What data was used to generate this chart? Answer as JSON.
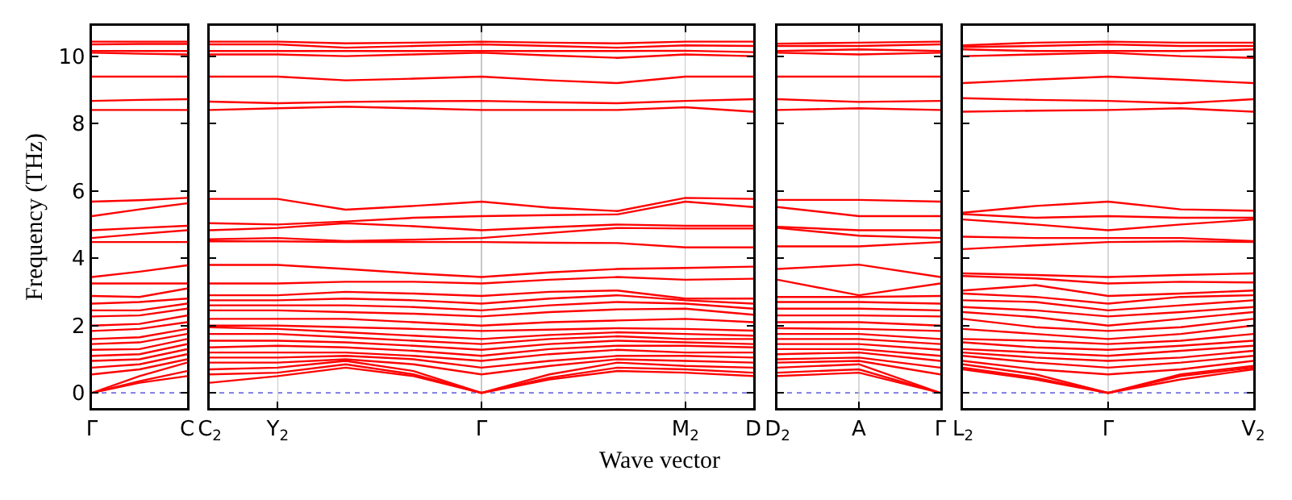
{
  "chart_data": [
    {
      "type": "line",
      "ylabel": "Frequency (THz)",
      "categories": [
        "Γ",
        null,
        "C"
      ],
      "ylim": [
        -0.45,
        10.9
      ],
      "yticks": [
        0,
        2,
        4,
        6,
        8,
        10
      ],
      "ref_lines": [
        {
          "axis": "y",
          "value": 0,
          "color": "#7070e0",
          "line_style": "dotted"
        }
      ],
      "series": [
        {
          "color": "#ff0000",
          "values": [
            0,
            0.3,
            0.5
          ]
        },
        {
          "color": "#ff0000",
          "values": [
            0,
            0.35,
            0.65
          ]
        },
        {
          "color": "#ff0000",
          "values": [
            0,
            0.5,
            0.9
          ]
        },
        {
          "color": "#ff0000",
          "values": [
            0.55,
            0.7,
            1.0
          ]
        },
        {
          "color": "#ff0000",
          "values": [
            0.75,
            0.85,
            1.15
          ]
        },
        {
          "color": "#ff0000",
          "values": [
            0.95,
            1.0,
            1.3
          ]
        },
        {
          "color": "#ff0000",
          "values": [
            1.1,
            1.15,
            1.45
          ]
        },
        {
          "color": "#ff0000",
          "values": [
            1.28,
            1.3,
            1.6
          ]
        },
        {
          "color": "#ff0000",
          "values": [
            1.45,
            1.5,
            1.75
          ]
        },
        {
          "color": "#ff0000",
          "values": [
            1.6,
            1.65,
            1.9
          ]
        },
        {
          "color": "#ff0000",
          "values": [
            1.84,
            1.9,
            2.1
          ]
        },
        {
          "color": "#ff0000",
          "values": [
            2.0,
            2.05,
            2.3
          ]
        },
        {
          "color": "#ff0000",
          "values": [
            2.27,
            2.3,
            2.5
          ]
        },
        {
          "color": "#ff0000",
          "values": [
            2.45,
            2.45,
            2.65
          ]
        },
        {
          "color": "#ff0000",
          "values": [
            2.65,
            2.7,
            2.8
          ]
        },
        {
          "color": "#ff0000",
          "values": [
            2.88,
            2.85,
            3.1
          ]
        },
        {
          "color": "#ff0000",
          "values": [
            3.25,
            3.25,
            3.25
          ]
        },
        {
          "color": "#ff0000",
          "values": [
            3.44,
            3.6,
            3.79
          ]
        },
        {
          "color": "#ff0000",
          "values": [
            4.48,
            4.48,
            4.48
          ]
        },
        {
          "color": "#ff0000",
          "values": [
            4.6,
            4.72,
            4.83
          ]
        },
        {
          "color": "#ff0000",
          "values": [
            4.83,
            4.9,
            4.96
          ]
        },
        {
          "color": "#ff0000",
          "values": [
            5.25,
            5.45,
            5.63
          ]
        },
        {
          "color": "#ff0000",
          "values": [
            5.68,
            5.72,
            5.79
          ]
        },
        {
          "color": "#ff0000",
          "values": [
            8.4,
            8.4,
            8.4
          ]
        },
        {
          "color": "#ff0000",
          "values": [
            8.67,
            8.7,
            8.72
          ]
        },
        {
          "color": "#ff0000",
          "values": [
            9.39,
            9.39,
            9.39
          ]
        },
        {
          "color": "#ff0000",
          "values": [
            10.1,
            10.07,
            10.05
          ]
        },
        {
          "color": "#ff0000",
          "values": [
            10.15,
            10.15,
            10.15
          ]
        },
        {
          "color": "#ff0000",
          "values": [
            10.35,
            10.36,
            10.36
          ]
        },
        {
          "color": "#ff0000",
          "values": [
            10.43,
            10.43,
            10.43
          ]
        }
      ]
    },
    {
      "type": "line",
      "xlabel": "Wave vector",
      "categories": [
        "C$_{2}$",
        "Y$_{2}$",
        null,
        null,
        "Γ",
        null,
        null,
        "M$_{2}$",
        "D"
      ],
      "ylim": [
        -0.45,
        10.9
      ],
      "yticks": [
        0,
        2,
        4,
        6,
        8,
        10
      ],
      "tick_labels": "x",
      "grid": "x",
      "ref_lines": [
        {
          "axis": "y",
          "value": 0,
          "color": "#7070e0",
          "line_style": "dotted"
        }
      ],
      "series": [
        {
          "color": "#ff0000",
          "values": [
            0.3,
            0.5,
            0.75,
            0.5,
            0,
            0.4,
            0.65,
            0.6,
            0.5
          ]
        },
        {
          "color": "#ff0000",
          "values": [
            0.55,
            0.6,
            0.85,
            0.55,
            0,
            0.45,
            0.75,
            0.7,
            0.6
          ]
        },
        {
          "color": "#ff0000",
          "values": [
            0.7,
            0.75,
            0.95,
            0.65,
            0,
            0.55,
            0.9,
            0.8,
            0.75
          ]
        },
        {
          "color": "#ff0000",
          "values": [
            0.9,
            0.9,
            1.0,
            0.85,
            0.55,
            0.8,
            1.0,
            0.95,
            0.9
          ]
        },
        {
          "color": "#ff0000",
          "values": [
            1.05,
            1.05,
            1.1,
            1.0,
            0.75,
            0.95,
            1.1,
            1.1,
            1.05
          ]
        },
        {
          "color": "#ff0000",
          "values": [
            1.2,
            1.2,
            1.2,
            1.1,
            0.95,
            1.15,
            1.28,
            1.2,
            1.2
          ]
        },
        {
          "color": "#ff0000",
          "values": [
            1.35,
            1.4,
            1.35,
            1.25,
            1.1,
            1.3,
            1.4,
            1.4,
            1.35
          ]
        },
        {
          "color": "#ff0000",
          "values": [
            1.55,
            1.55,
            1.5,
            1.4,
            1.28,
            1.45,
            1.55,
            1.5,
            1.45
          ]
        },
        {
          "color": "#ff0000",
          "values": [
            1.75,
            1.75,
            1.65,
            1.55,
            1.45,
            1.6,
            1.68,
            1.6,
            1.6
          ]
        },
        {
          "color": "#ff0000",
          "values": [
            1.95,
            1.9,
            1.8,
            1.7,
            1.6,
            1.72,
            1.8,
            1.75,
            1.7
          ]
        },
        {
          "color": "#ff0000",
          "values": [
            2.0,
            2.0,
            1.95,
            1.9,
            1.84,
            1.88,
            1.92,
            1.9,
            1.85
          ]
        },
        {
          "color": "#ff0000",
          "values": [
            2.2,
            2.2,
            2.2,
            2.1,
            2.0,
            2.1,
            2.15,
            2.2,
            2.1
          ]
        },
        {
          "color": "#ff0000",
          "values": [
            2.45,
            2.45,
            2.4,
            2.35,
            2.27,
            2.4,
            2.48,
            2.5,
            2.32
          ]
        },
        {
          "color": "#ff0000",
          "values": [
            2.6,
            2.6,
            2.6,
            2.55,
            2.45,
            2.6,
            2.7,
            2.65,
            2.5
          ]
        },
        {
          "color": "#ff0000",
          "values": [
            2.75,
            2.75,
            2.8,
            2.75,
            2.65,
            2.8,
            2.9,
            2.75,
            2.65
          ]
        },
        {
          "color": "#ff0000",
          "values": [
            2.9,
            2.9,
            3.0,
            2.95,
            2.88,
            3.0,
            3.04,
            2.8,
            2.8
          ]
        },
        {
          "color": "#ff0000",
          "values": [
            3.25,
            3.25,
            3.3,
            3.3,
            3.25,
            3.36,
            3.44,
            3.36,
            3.39
          ]
        },
        {
          "color": "#ff0000",
          "values": [
            3.8,
            3.8,
            3.68,
            3.55,
            3.44,
            3.58,
            3.68,
            3.71,
            3.75
          ]
        },
        {
          "color": "#ff0000",
          "values": [
            4.5,
            4.5,
            4.48,
            4.48,
            4.48,
            4.46,
            4.45,
            4.32,
            4.32
          ]
        },
        {
          "color": "#ff0000",
          "values": [
            4.56,
            4.6,
            4.51,
            4.55,
            4.6,
            4.75,
            4.9,
            4.88,
            4.88
          ]
        },
        {
          "color": "#ff0000",
          "values": [
            4.83,
            4.9,
            5.04,
            4.95,
            4.83,
            4.92,
            5.0,
            4.96,
            4.96
          ]
        },
        {
          "color": "#ff0000",
          "values": [
            5.04,
            5.0,
            5.09,
            5.2,
            5.25,
            5.28,
            5.3,
            5.68,
            5.52
          ]
        },
        {
          "color": "#ff0000",
          "values": [
            5.76,
            5.76,
            5.44,
            5.55,
            5.68,
            5.5,
            5.4,
            5.79,
            5.76
          ]
        },
        {
          "color": "#ff0000",
          "values": [
            8.4,
            8.45,
            8.5,
            8.45,
            8.4,
            8.4,
            8.4,
            8.48,
            8.35
          ]
        },
        {
          "color": "#ff0000",
          "values": [
            8.65,
            8.6,
            8.64,
            8.66,
            8.67,
            8.63,
            8.6,
            8.67,
            8.72
          ]
        },
        {
          "color": "#ff0000",
          "values": [
            9.39,
            9.39,
            9.28,
            9.33,
            9.39,
            9.28,
            9.2,
            9.39,
            9.39
          ]
        },
        {
          "color": "#ff0000",
          "values": [
            10.05,
            10.05,
            10.0,
            10.05,
            10.1,
            10.02,
            9.95,
            10.05,
            10.0
          ]
        },
        {
          "color": "#ff0000",
          "values": [
            10.15,
            10.15,
            10.15,
            10.15,
            10.15,
            10.15,
            10.15,
            10.16,
            10.12
          ]
        },
        {
          "color": "#ff0000",
          "values": [
            10.35,
            10.35,
            10.25,
            10.3,
            10.35,
            10.3,
            10.25,
            10.32,
            10.3
          ]
        },
        {
          "color": "#ff0000",
          "values": [
            10.43,
            10.43,
            10.38,
            10.4,
            10.43,
            10.4,
            10.38,
            10.43,
            10.43
          ]
        }
      ]
    },
    {
      "type": "line",
      "categories": [
        "D$_{2}$",
        "A",
        "Γ"
      ],
      "ylim": [
        -0.45,
        10.9
      ],
      "yticks": [
        0,
        2,
        4,
        6,
        8,
        10
      ],
      "tick_labels": "x",
      "ref_lines": [
        {
          "axis": "y",
          "value": 0,
          "color": "#7070e0",
          "line_style": "dotted"
        },
        {
          "axis": "x",
          "value": "A",
          "color": "#c8c8c8",
          "line_style": "solid"
        }
      ],
      "series": [
        {
          "color": "#ff0000",
          "values": [
            0.5,
            0.6,
            0
          ]
        },
        {
          "color": "#ff0000",
          "values": [
            0.6,
            0.7,
            0
          ]
        },
        {
          "color": "#ff0000",
          "values": [
            0.75,
            0.85,
            0
          ]
        },
        {
          "color": "#ff0000",
          "values": [
            0.9,
            0.95,
            0.55
          ]
        },
        {
          "color": "#ff0000",
          "values": [
            1.0,
            1.05,
            0.75
          ]
        },
        {
          "color": "#ff0000",
          "values": [
            1.15,
            1.2,
            0.95
          ]
        },
        {
          "color": "#ff0000",
          "values": [
            1.3,
            1.3,
            1.1
          ]
        },
        {
          "color": "#ff0000",
          "values": [
            1.45,
            1.45,
            1.28
          ]
        },
        {
          "color": "#ff0000",
          "values": [
            1.6,
            1.6,
            1.45
          ]
        },
        {
          "color": "#ff0000",
          "values": [
            1.75,
            1.75,
            1.6
          ]
        },
        {
          "color": "#ff0000",
          "values": [
            1.92,
            1.9,
            1.84
          ]
        },
        {
          "color": "#ff0000",
          "values": [
            2.1,
            2.1,
            2.0
          ]
        },
        {
          "color": "#ff0000",
          "values": [
            2.3,
            2.3,
            2.27
          ]
        },
        {
          "color": "#ff0000",
          "values": [
            2.5,
            2.5,
            2.45
          ]
        },
        {
          "color": "#ff0000",
          "values": [
            2.7,
            2.7,
            2.65
          ]
        },
        {
          "color": "#ff0000",
          "values": [
            2.85,
            2.85,
            2.88
          ]
        },
        {
          "color": "#ff0000",
          "values": [
            3.36,
            2.9,
            3.25
          ]
        },
        {
          "color": "#ff0000",
          "values": [
            3.68,
            3.81,
            3.44
          ]
        },
        {
          "color": "#ff0000",
          "values": [
            4.35,
            4.35,
            4.48
          ]
        },
        {
          "color": "#ff0000",
          "values": [
            4.9,
            4.67,
            4.6
          ]
        },
        {
          "color": "#ff0000",
          "values": [
            4.93,
            4.83,
            4.83
          ]
        },
        {
          "color": "#ff0000",
          "values": [
            5.52,
            5.25,
            5.25
          ]
        },
        {
          "color": "#ff0000",
          "values": [
            5.73,
            5.73,
            5.68
          ]
        },
        {
          "color": "#ff0000",
          "values": [
            8.4,
            8.45,
            8.4
          ]
        },
        {
          "color": "#ff0000",
          "values": [
            8.72,
            8.64,
            8.67
          ]
        },
        {
          "color": "#ff0000",
          "values": [
            9.39,
            9.39,
            9.39
          ]
        },
        {
          "color": "#ff0000",
          "values": [
            10.1,
            10.05,
            10.1
          ]
        },
        {
          "color": "#ff0000",
          "values": [
            10.15,
            10.2,
            10.15
          ]
        },
        {
          "color": "#ff0000",
          "values": [
            10.3,
            10.3,
            10.35
          ]
        },
        {
          "color": "#ff0000",
          "values": [
            10.37,
            10.4,
            10.43
          ]
        }
      ]
    },
    {
      "type": "line",
      "categories": [
        "L$_{2}$",
        null,
        "Γ",
        null,
        "V$_{2}$"
      ],
      "ylim": [
        -0.45,
        10.9
      ],
      "yticks": [
        0,
        2,
        4,
        6,
        8,
        10
      ],
      "tick_labels": "x",
      "ref_lines": [
        {
          "axis": "y",
          "value": 0,
          "color": "#7070e0",
          "line_style": "dotted"
        },
        {
          "axis": "x",
          "value": "Γ",
          "color": "#c8c8c8",
          "line_style": "solid"
        }
      ],
      "series": [
        {
          "color": "#ff0000",
          "values": [
            0.7,
            0.4,
            0,
            0.4,
            0.7
          ]
        },
        {
          "color": "#ff0000",
          "values": [
            0.75,
            0.45,
            0,
            0.5,
            0.75
          ]
        },
        {
          "color": "#ff0000",
          "values": [
            0.85,
            0.55,
            0,
            0.55,
            0.8
          ]
        },
        {
          "color": "#ff0000",
          "values": [
            0.95,
            0.7,
            0.55,
            0.7,
            0.95
          ]
        },
        {
          "color": "#ff0000",
          "values": [
            1.1,
            0.9,
            0.75,
            0.9,
            1.1
          ]
        },
        {
          "color": "#ff0000",
          "values": [
            1.2,
            1.05,
            0.95,
            1.05,
            1.25
          ]
        },
        {
          "color": "#ff0000",
          "values": [
            1.3,
            1.2,
            1.1,
            1.25,
            1.4
          ]
        },
        {
          "color": "#ff0000",
          "values": [
            1.5,
            1.35,
            1.28,
            1.4,
            1.55
          ]
        },
        {
          "color": "#ff0000",
          "values": [
            1.6,
            1.55,
            1.45,
            1.55,
            1.75
          ]
        },
        {
          "color": "#ff0000",
          "values": [
            1.9,
            1.75,
            1.6,
            1.75,
            2.0
          ]
        },
        {
          "color": "#ff0000",
          "values": [
            2.2,
            1.95,
            1.84,
            1.95,
            2.2
          ]
        },
        {
          "color": "#ff0000",
          "values": [
            2.4,
            2.25,
            2.0,
            2.2,
            2.4
          ]
        },
        {
          "color": "#ff0000",
          "values": [
            2.55,
            2.45,
            2.27,
            2.4,
            2.55
          ]
        },
        {
          "color": "#ff0000",
          "values": [
            2.75,
            2.7,
            2.45,
            2.6,
            2.75
          ]
        },
        {
          "color": "#ff0000",
          "values": [
            2.95,
            2.85,
            2.65,
            2.85,
            2.9
          ]
        },
        {
          "color": "#ff0000",
          "values": [
            3.04,
            3.2,
            2.88,
            2.95,
            3.04
          ]
        },
        {
          "color": "#ff0000",
          "values": [
            3.47,
            3.4,
            3.25,
            3.3,
            3.28
          ]
        },
        {
          "color": "#ff0000",
          "values": [
            3.55,
            3.5,
            3.44,
            3.5,
            3.55
          ]
        },
        {
          "color": "#ff0000",
          "values": [
            4.27,
            4.38,
            4.48,
            4.5,
            4.48
          ]
        },
        {
          "color": "#ff0000",
          "values": [
            4.64,
            4.6,
            4.6,
            4.6,
            4.51
          ]
        },
        {
          "color": "#ff0000",
          "values": [
            5.15,
            5.0,
            4.83,
            5.0,
            5.15
          ]
        },
        {
          "color": "#ff0000",
          "values": [
            5.31,
            5.2,
            5.25,
            5.2,
            5.2
          ]
        },
        {
          "color": "#ff0000",
          "values": [
            5.35,
            5.55,
            5.68,
            5.45,
            5.41
          ]
        },
        {
          "color": "#ff0000",
          "values": [
            8.35,
            8.38,
            8.4,
            8.45,
            8.35
          ]
        },
        {
          "color": "#ff0000",
          "values": [
            8.75,
            8.7,
            8.67,
            8.6,
            8.72
          ]
        },
        {
          "color": "#ff0000",
          "values": [
            9.2,
            9.3,
            9.39,
            9.3,
            9.2
          ]
        },
        {
          "color": "#ff0000",
          "values": [
            10.0,
            10.05,
            10.1,
            10.0,
            9.95
          ]
        },
        {
          "color": "#ff0000",
          "values": [
            10.2,
            10.15,
            10.15,
            10.15,
            10.2
          ]
        },
        {
          "color": "#ff0000",
          "values": [
            10.27,
            10.3,
            10.35,
            10.3,
            10.3
          ]
        },
        {
          "color": "#ff0000",
          "values": [
            10.32,
            10.4,
            10.43,
            10.4,
            10.4
          ]
        }
      ]
    }
  ]
}
